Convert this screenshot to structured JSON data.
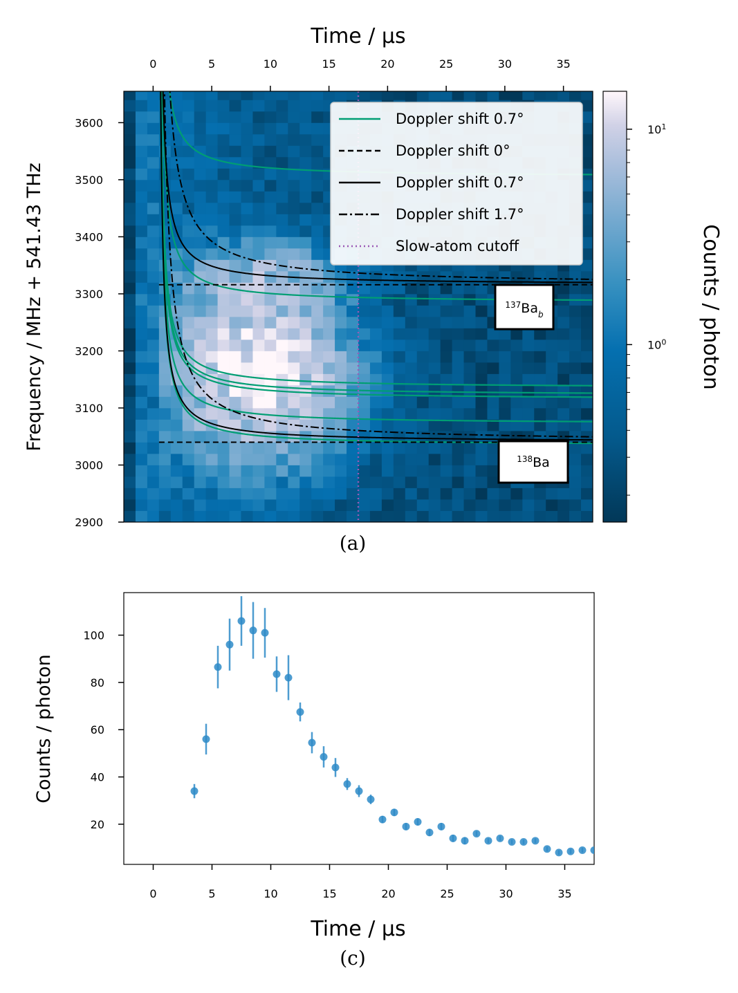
{
  "panel_a": {
    "title": "Time / μs",
    "ylabel": "Frequency / MHz + 541.43 THz",
    "caption": "(a)",
    "colorbar_label": "Counts / photon",
    "colorbar_ticks": [
      "10^1",
      "10^0"
    ],
    "annotations": [
      {
        "text": "137Ba_b"
      },
      {
        "text": "138Ba"
      }
    ]
  },
  "panel_c": {
    "xlabel": "Time / μs",
    "ylabel": "Counts / photon",
    "caption": "(c)"
  },
  "colors": {
    "green": "#009e73",
    "black": "#000000",
    "cutoff": "#9b59b6",
    "point": "#2e8bc8",
    "cmap_dark": "#023858",
    "cmap_mid": "#0570b0",
    "cmap_light": "#d0d1e6",
    "cmap_top": "#fff7fb"
  },
  "chart_data": [
    {
      "type": "heatmap",
      "title": "",
      "xlabel": "Time / μs",
      "ylabel": "Frequency / MHz + 541.43 THz",
      "xlim": [
        -2.5,
        37.5
      ],
      "ylim": [
        2900,
        3655
      ],
      "xticks": [
        0,
        5,
        10,
        15,
        20,
        25,
        30,
        35
      ],
      "yticks": [
        2900,
        3000,
        3100,
        3200,
        3300,
        3400,
        3500,
        3600
      ],
      "color_scale": "log",
      "clim": [
        0.15,
        15
      ],
      "legend_position": "upper-right",
      "legend": [
        {
          "label": "Doppler shift 0.7°",
          "style": "solid",
          "color": "#009e73"
        },
        {
          "label": "Doppler shift 0°",
          "style": "dashed",
          "color": "#000000"
        },
        {
          "label": "Doppler shift 0.7°",
          "style": "solid",
          "color": "#000000"
        },
        {
          "label": "Doppler shift 1.7°",
          "style": "dashdot",
          "color": "#000000"
        },
        {
          "label": "Slow-atom cutoff",
          "style": "dotted",
          "color": "#9b59b6"
        }
      ],
      "cutoff_time": 17.5,
      "isotopes": [
        {
          "name": "138Ba",
          "f0": 3040,
          "label": "138Ba"
        },
        {
          "name": "137Ba_b",
          "f0": 3316,
          "label": "137Ba_b"
        }
      ],
      "green_lines_f0": [
        3034,
        3072,
        3115,
        3122,
        3135,
        3285,
        3505
      ],
      "doppler_curve_params": {
        "t0": 0.4,
        "A_0.7deg": 150,
        "A_1.7deg": 350
      },
      "intensity_peak": {
        "t_center": 9,
        "t_spread": 6,
        "f_center": 3160,
        "f_spread": 120
      }
    },
    {
      "type": "scatter",
      "title": "",
      "xlabel": "Time / μs",
      "ylabel": "Counts / photon",
      "xlim": [
        -2.5,
        37.5
      ],
      "ylim": [
        3,
        118
      ],
      "xticks": [
        0,
        5,
        10,
        15,
        20,
        25,
        30,
        35
      ],
      "yticks": [
        20,
        40,
        60,
        80,
        100
      ],
      "series": [
        {
          "x": [
            3.5,
            4.5,
            5.5,
            6.5,
            7.5,
            8.5,
            9.5,
            10.5,
            11.5,
            12.5,
            13.5,
            14.5,
            15.5,
            16.5,
            17.5,
            18.5,
            19.5,
            20.5,
            21.5,
            22.5,
            23.5,
            24.5,
            25.5,
            26.5,
            27.5,
            28.5,
            29.5,
            30.5,
            31.5,
            32.5,
            33.5,
            34.5,
            35.5,
            36.5,
            37.5
          ],
          "y": [
            34,
            56,
            86.5,
            96,
            106,
            102,
            101,
            83.5,
            82,
            67.5,
            54.5,
            48.5,
            44,
            37,
            34,
            30.5,
            22,
            25,
            19,
            21,
            16.5,
            19,
            14,
            13,
            16,
            13,
            14,
            12.5,
            12.5,
            13,
            9.5,
            8,
            8.5,
            9,
            9
          ],
          "yerr": [
            3,
            6.5,
            9,
            11,
            10.5,
            12,
            10.5,
            7.5,
            9.5,
            4,
            4.5,
            4.5,
            4,
            2.5,
            2.5,
            2,
            1.5,
            1.5,
            1.5,
            1.5,
            1.5,
            1.5,
            1.5,
            1.5,
            1,
            1,
            1,
            1,
            1,
            1,
            1,
            1,
            1,
            1,
            1
          ]
        }
      ]
    }
  ]
}
